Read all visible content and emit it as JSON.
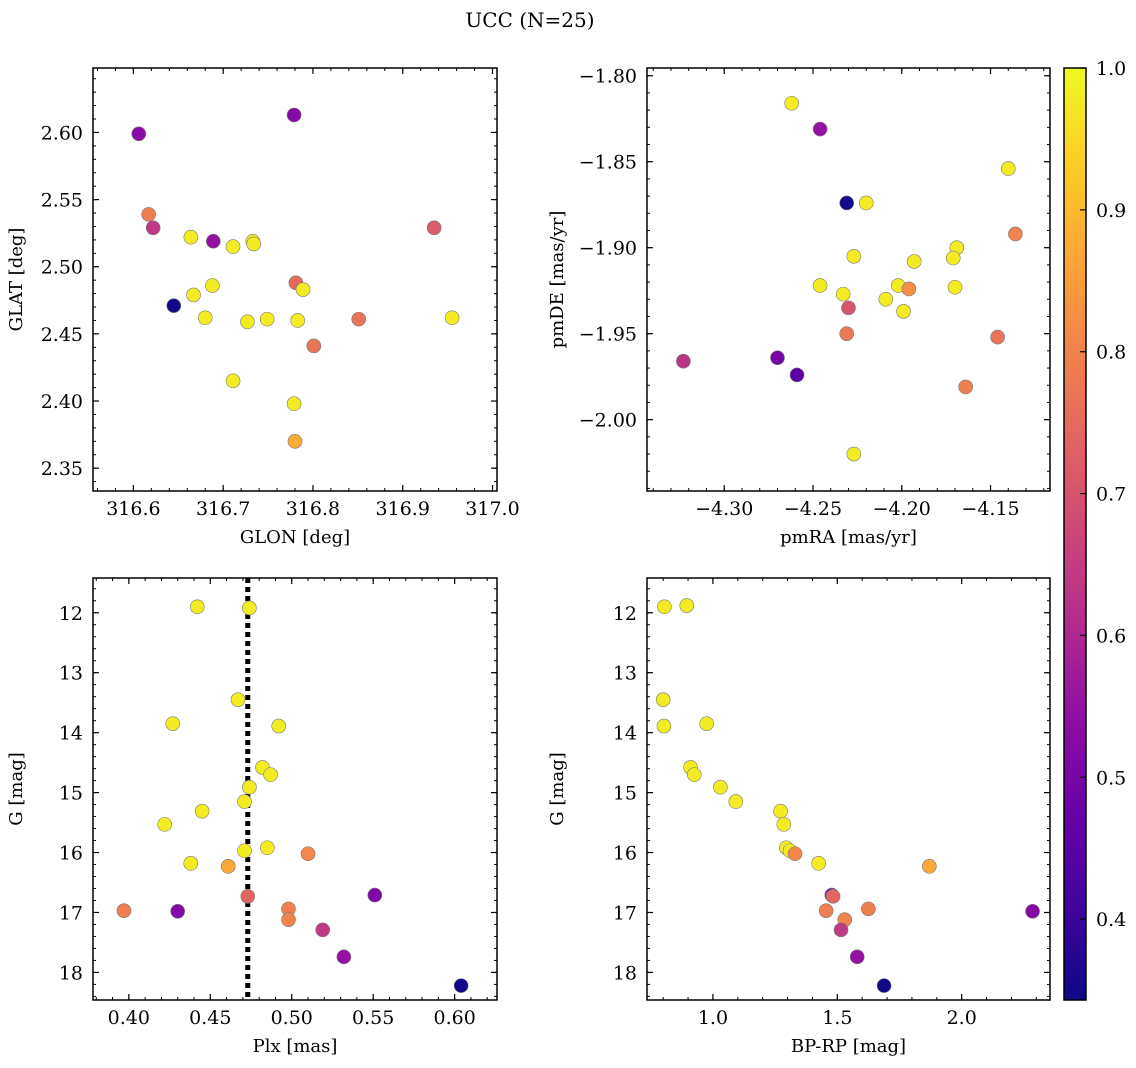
{
  "figure": {
    "title": "UCC (N=25)"
  },
  "colorbar": {
    "min": 0.343,
    "max": 1.0,
    "ticks": [
      "0.4",
      "0.5",
      "0.6",
      "0.7",
      "0.8",
      "0.9",
      "1.0"
    ],
    "colormap": "plasma"
  },
  "chart_data": [
    {
      "type": "scatter",
      "xlabel": "GLON [deg]",
      "ylabel": "GLAT [deg]",
      "xlim": [
        316.555,
        317.005
      ],
      "ylim": [
        2.333,
        2.648
      ],
      "xticks": [
        "316.6",
        "316.7",
        "316.8",
        "316.9",
        "317.0"
      ],
      "yticks": [
        "2.35",
        "2.40",
        "2.45",
        "2.50",
        "2.55",
        "2.60"
      ],
      "points": [
        {
          "x": 316.606,
          "y": 2.599,
          "c": 0.53
        },
        {
          "x": 316.779,
          "y": 2.613,
          "c": 0.52
        },
        {
          "x": 316.617,
          "y": 2.539,
          "c": 0.79
        },
        {
          "x": 316.622,
          "y": 2.529,
          "c": 0.64
        },
        {
          "x": 316.664,
          "y": 2.522,
          "c": 0.98
        },
        {
          "x": 316.689,
          "y": 2.519,
          "c": 0.55
        },
        {
          "x": 316.711,
          "y": 2.515,
          "c": 0.98
        },
        {
          "x": 316.733,
          "y": 2.519,
          "c": 0.98
        },
        {
          "x": 316.734,
          "y": 2.517,
          "c": 0.98
        },
        {
          "x": 316.935,
          "y": 2.529,
          "c": 0.72
        },
        {
          "x": 316.781,
          "y": 2.488,
          "c": 0.75
        },
        {
          "x": 316.789,
          "y": 2.483,
          "c": 0.98
        },
        {
          "x": 316.688,
          "y": 2.486,
          "c": 0.98
        },
        {
          "x": 316.667,
          "y": 2.479,
          "c": 0.98
        },
        {
          "x": 316.645,
          "y": 2.471,
          "c": 0.35
        },
        {
          "x": 316.68,
          "y": 2.462,
          "c": 0.98
        },
        {
          "x": 316.727,
          "y": 2.459,
          "c": 0.98
        },
        {
          "x": 316.749,
          "y": 2.461,
          "c": 0.98
        },
        {
          "x": 316.783,
          "y": 2.46,
          "c": 0.98
        },
        {
          "x": 316.851,
          "y": 2.461,
          "c": 0.77
        },
        {
          "x": 316.955,
          "y": 2.462,
          "c": 0.98
        },
        {
          "x": 316.801,
          "y": 2.441,
          "c": 0.77
        },
        {
          "x": 316.711,
          "y": 2.415,
          "c": 0.98
        },
        {
          "x": 316.779,
          "y": 2.398,
          "c": 0.98
        },
        {
          "x": 316.78,
          "y": 2.37,
          "c": 0.88
        }
      ]
    },
    {
      "type": "scatter",
      "xlabel": "pmRA [mas/yr]",
      "ylabel": "pmDE [mas/yr]",
      "xlim": [
        -4.3435,
        -4.1165
      ],
      "ylim": [
        -2.0415,
        -1.7955
      ],
      "xticks": [
        "−4.30",
        "−4.25",
        "−4.20",
        "−4.15"
      ],
      "yticks": [
        "−2.00",
        "−1.95",
        "−1.90",
        "−1.85",
        "−1.80"
      ],
      "points": [
        {
          "x": -4.262,
          "y": -1.816,
          "c": 0.98
        },
        {
          "x": -4.246,
          "y": -1.831,
          "c": 0.55
        },
        {
          "x": -4.14,
          "y": -1.854,
          "c": 0.98
        },
        {
          "x": -4.231,
          "y": -1.874,
          "c": 0.35
        },
        {
          "x": -4.22,
          "y": -1.874,
          "c": 0.98
        },
        {
          "x": -4.136,
          "y": -1.892,
          "c": 0.8
        },
        {
          "x": -4.169,
          "y": -1.9,
          "c": 0.98
        },
        {
          "x": -4.227,
          "y": -1.905,
          "c": 0.98
        },
        {
          "x": -4.193,
          "y": -1.908,
          "c": 0.98
        },
        {
          "x": -4.171,
          "y": -1.906,
          "c": 0.98
        },
        {
          "x": -4.246,
          "y": -1.922,
          "c": 0.98
        },
        {
          "x": -4.202,
          "y": -1.922,
          "c": 0.98
        },
        {
          "x": -4.196,
          "y": -1.924,
          "c": 0.82
        },
        {
          "x": -4.17,
          "y": -1.923,
          "c": 0.98
        },
        {
          "x": -4.233,
          "y": -1.927,
          "c": 0.98
        },
        {
          "x": -4.209,
          "y": -1.93,
          "c": 0.98
        },
        {
          "x": -4.23,
          "y": -1.935,
          "c": 0.7
        },
        {
          "x": -4.199,
          "y": -1.937,
          "c": 0.98
        },
        {
          "x": -4.231,
          "y": -1.95,
          "c": 0.78
        },
        {
          "x": -4.146,
          "y": -1.952,
          "c": 0.77
        },
        {
          "x": -4.323,
          "y": -1.966,
          "c": 0.63
        },
        {
          "x": -4.27,
          "y": -1.964,
          "c": 0.5
        },
        {
          "x": -4.259,
          "y": -1.974,
          "c": 0.45
        },
        {
          "x": -4.164,
          "y": -1.981,
          "c": 0.79
        },
        {
          "x": -4.227,
          "y": -2.02,
          "c": 0.98
        }
      ]
    },
    {
      "type": "scatter",
      "xlabel": "Plx [mas]",
      "ylabel": "G [mag]",
      "xlim": [
        0.378,
        0.626
      ],
      "ylim": [
        18.46,
        11.42
      ],
      "xticks": [
        "0.40",
        "0.45",
        "0.50",
        "0.55",
        "0.60"
      ],
      "yticks": [
        "12",
        "13",
        "14",
        "15",
        "16",
        "17",
        "18"
      ],
      "vline": 0.473,
      "points": [
        {
          "x": 0.442,
          "y": 11.9,
          "c": 0.98
        },
        {
          "x": 0.474,
          "y": 11.92,
          "c": 0.98
        },
        {
          "x": 0.467,
          "y": 13.45,
          "c": 0.98
        },
        {
          "x": 0.427,
          "y": 13.85,
          "c": 0.98
        },
        {
          "x": 0.492,
          "y": 13.89,
          "c": 0.98
        },
        {
          "x": 0.482,
          "y": 14.58,
          "c": 0.98
        },
        {
          "x": 0.487,
          "y": 14.7,
          "c": 0.98
        },
        {
          "x": 0.474,
          "y": 14.91,
          "c": 0.98
        },
        {
          "x": 0.471,
          "y": 15.15,
          "c": 0.98
        },
        {
          "x": 0.445,
          "y": 15.31,
          "c": 0.98
        },
        {
          "x": 0.422,
          "y": 15.53,
          "c": 0.98
        },
        {
          "x": 0.485,
          "y": 15.92,
          "c": 0.98
        },
        {
          "x": 0.471,
          "y": 15.97,
          "c": 0.98
        },
        {
          "x": 0.51,
          "y": 16.02,
          "c": 0.81
        },
        {
          "x": 0.438,
          "y": 16.18,
          "c": 0.98
        },
        {
          "x": 0.461,
          "y": 16.23,
          "c": 0.87
        },
        {
          "x": 0.551,
          "y": 16.71,
          "c": 0.51
        },
        {
          "x": 0.473,
          "y": 16.73,
          "c": 0.74
        },
        {
          "x": 0.397,
          "y": 16.97,
          "c": 0.79
        },
        {
          "x": 0.43,
          "y": 16.98,
          "c": 0.52
        },
        {
          "x": 0.498,
          "y": 16.94,
          "c": 0.79
        },
        {
          "x": 0.498,
          "y": 17.12,
          "c": 0.8
        },
        {
          "x": 0.519,
          "y": 17.29,
          "c": 0.64
        },
        {
          "x": 0.532,
          "y": 17.74,
          "c": 0.55
        },
        {
          "x": 0.604,
          "y": 18.22,
          "c": 0.35
        }
      ]
    },
    {
      "type": "scatter",
      "xlabel": "BP-RP [mag]",
      "ylabel": "G [mag]",
      "xlim": [
        0.735,
        2.355
      ],
      "ylim": [
        18.46,
        11.42
      ],
      "xticks": [
        "1.0",
        "1.5",
        "2.0"
      ],
      "yticks": [
        "12",
        "13",
        "14",
        "15",
        "16",
        "17",
        "18"
      ],
      "points": [
        {
          "x": 0.805,
          "y": 11.9,
          "c": 0.98
        },
        {
          "x": 0.895,
          "y": 11.88,
          "c": 0.98
        },
        {
          "x": 0.8,
          "y": 13.45,
          "c": 0.98
        },
        {
          "x": 0.803,
          "y": 13.89,
          "c": 0.98
        },
        {
          "x": 0.975,
          "y": 13.85,
          "c": 0.98
        },
        {
          "x": 0.91,
          "y": 14.58,
          "c": 0.98
        },
        {
          "x": 0.925,
          "y": 14.7,
          "c": 0.98
        },
        {
          "x": 1.03,
          "y": 14.91,
          "c": 0.98
        },
        {
          "x": 1.092,
          "y": 15.15,
          "c": 0.98
        },
        {
          "x": 1.272,
          "y": 15.31,
          "c": 0.98
        },
        {
          "x": 1.285,
          "y": 15.53,
          "c": 0.98
        },
        {
          "x": 1.295,
          "y": 15.92,
          "c": 0.98
        },
        {
          "x": 1.31,
          "y": 15.97,
          "c": 0.98
        },
        {
          "x": 1.33,
          "y": 16.02,
          "c": 0.81
        },
        {
          "x": 1.425,
          "y": 16.18,
          "c": 0.98
        },
        {
          "x": 1.87,
          "y": 16.23,
          "c": 0.87
        },
        {
          "x": 1.478,
          "y": 16.71,
          "c": 0.51
        },
        {
          "x": 1.483,
          "y": 16.73,
          "c": 0.74
        },
        {
          "x": 1.455,
          "y": 16.97,
          "c": 0.79
        },
        {
          "x": 2.285,
          "y": 16.98,
          "c": 0.52
        },
        {
          "x": 1.625,
          "y": 16.94,
          "c": 0.79
        },
        {
          "x": 1.53,
          "y": 17.12,
          "c": 0.8
        },
        {
          "x": 1.515,
          "y": 17.29,
          "c": 0.64
        },
        {
          "x": 1.58,
          "y": 17.74,
          "c": 0.55
        },
        {
          "x": 1.688,
          "y": 18.22,
          "c": 0.35
        }
      ]
    }
  ]
}
